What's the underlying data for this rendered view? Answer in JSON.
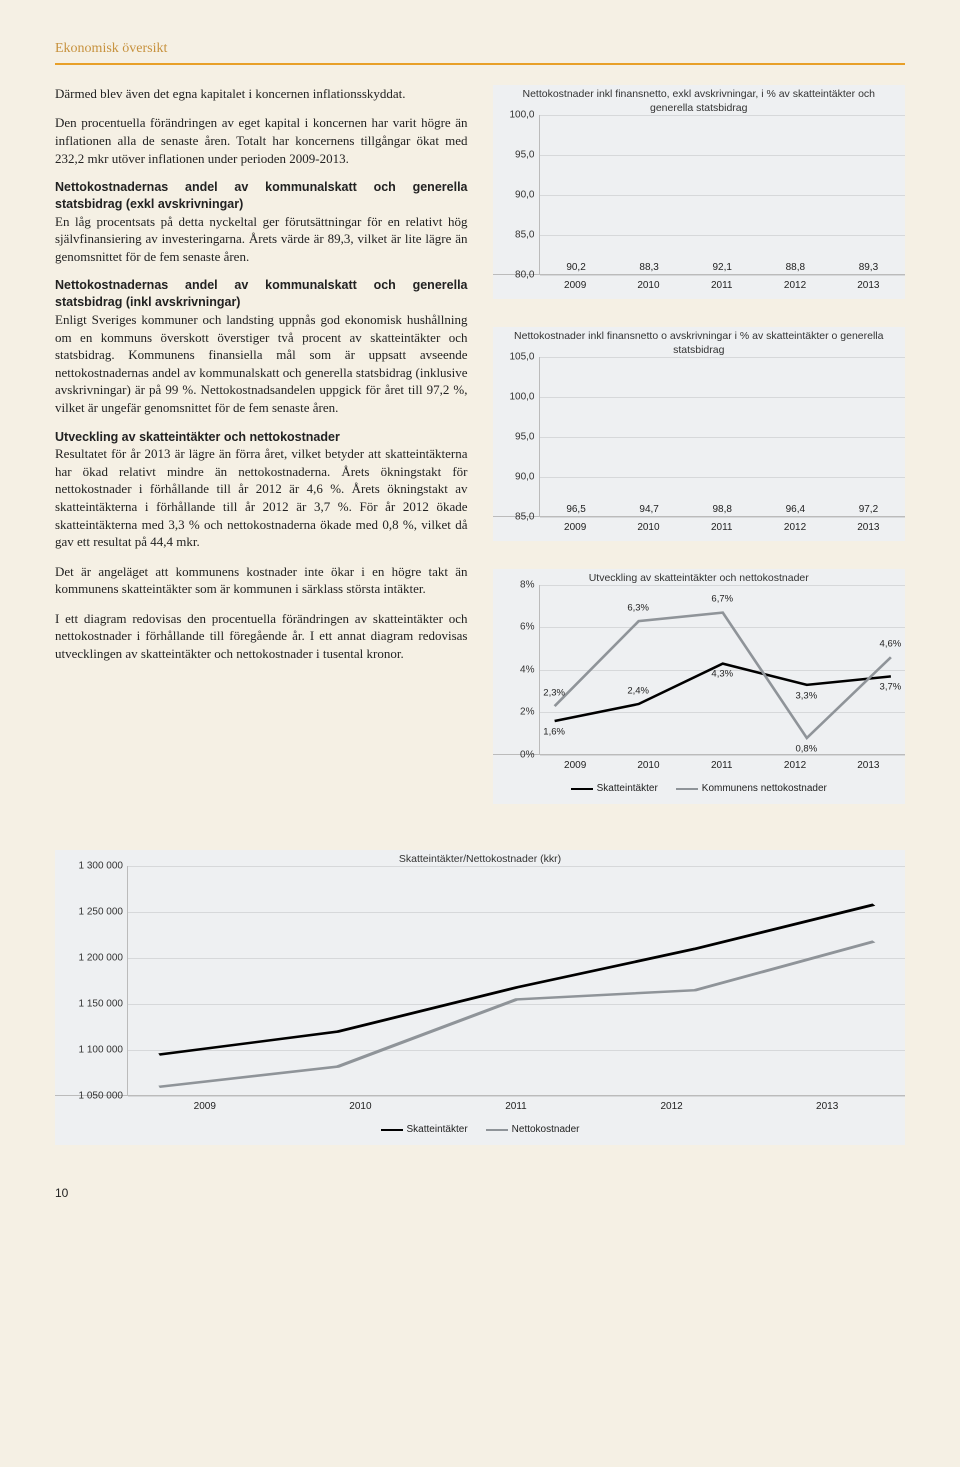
{
  "header": {
    "title": "Ekonomisk översikt"
  },
  "page_number": "10",
  "text": {
    "p1a": "Därmed blev även det egna kapitalet i koncernen inflationsskyddat.",
    "p1b": "Den procentuella förändringen av eget kapital i koncernen har varit högre än inflationen alla de senaste åren. Totalt har koncernens tillgångar ökat med 232,2 mkr utöver inflationen under perioden 2009-2013.",
    "t2": "Nettokostnadernas andel av kommunalskatt och generella statsbidrag (exkl avskrivningar)",
    "p2": "En låg procentsats på detta nyckeltal ger förutsättningar för en relativt hög självfinansiering av investeringarna. Årets värde är 89,3, vilket är lite lägre än genomsnittet för de fem senaste åren.",
    "t3": "Nettokostnadernas andel av kommunalskatt och generella statsbidrag (inkl avskrivningar)",
    "p3": "Enligt Sveriges kommuner och landsting uppnås god ekonomisk hushållning om en kommuns överskott överstiger två procent av skatteintäkter och statsbidrag. Kommunens finansiella mål som är uppsatt avseende nettokostnadernas andel av kommunalskatt och generella statsbidrag (inklusive avskrivningar) är på 99 %. Nettokostnadsandelen uppgick för året till 97,2 %, vilket är ungefär genomsnittet för de fem senaste åren.",
    "t4": "Utveckling av skatteintäkter och nettokostnader",
    "p4a": "Resultatet för år 2013 är lägre än förra året, vilket betyder att skatteintäkterna har ökad relativt mindre än nettokostnaderna. Årets ökningstakt för nettokostnader i förhållande till år 2012 är 4,6 %. Årets ökningstakt av skatteintäkterna i förhållande till år 2012 är 3,7 %. För år 2012 ökade skatteintäkterna med 3,3 % och nettokostnaderna ökade med 0,8 %, vilket då gav ett resultat på 44,4 mkr.",
    "p4b": "Det är angeläget att kommunens kostnader inte ökar i en högre takt än kommunens skatteintäkter som är kommunen i särklass största intäkter.",
    "p4c": "I ett diagram redovisas den procentuella förändringen av skatteintäkter och nettokostnader i förhållande till föregående år. I ett annat diagram redovisas utvecklingen av skatteintäkter och nettokostnader i tusental kronor."
  },
  "chart1": {
    "type": "bar",
    "title": "Nettokostnader inkl finansnetto, exkl avskrivningar, i % av skatteintäkter och generella statsbidrag",
    "categories": [
      "2009",
      "2010",
      "2011",
      "2012",
      "2013"
    ],
    "values": [
      90.2,
      88.3,
      92.1,
      88.8,
      89.3
    ],
    "labels": [
      "90,2",
      "88,3",
      "92,1",
      "88,8",
      "89,3"
    ],
    "bar_color": "#a9b0b6",
    "ylim": [
      80,
      100
    ],
    "yticks": [
      "80,0",
      "85,0",
      "90,0",
      "95,0",
      "100,0"
    ],
    "ytick_vals": [
      80,
      85,
      90,
      95,
      100
    ],
    "background": "#eef0f2",
    "grid_color": "#d6d8da"
  },
  "chart2": {
    "type": "bar",
    "title": "Nettokostnader inkl finansnetto o avskrivningar i % av skatteintäkter o generella statsbidrag",
    "categories": [
      "2009",
      "2010",
      "2011",
      "2012",
      "2013"
    ],
    "values": [
      96.5,
      94.7,
      98.8,
      96.4,
      97.2
    ],
    "labels": [
      "96,5",
      "94,7",
      "98,8",
      "96,4",
      "97,2"
    ],
    "bar_color": "#a9b0b6",
    "ylim": [
      85,
      105
    ],
    "yticks": [
      "85,0",
      "90,0",
      "95,0",
      "100,0",
      "105,0"
    ],
    "ytick_vals": [
      85,
      90,
      95,
      100,
      105
    ],
    "background": "#eef0f2",
    "grid_color": "#d6d8da"
  },
  "chart3": {
    "type": "line",
    "title": "Utveckling av skatteintäkter och nettokostnader",
    "categories": [
      "2009",
      "2010",
      "2011",
      "2012",
      "2013"
    ],
    "ylim": [
      0,
      8
    ],
    "yticks": [
      "0%",
      "2%",
      "4%",
      "6%",
      "8%"
    ],
    "ytick_vals": [
      0,
      2,
      4,
      6,
      8
    ],
    "series": [
      {
        "name": "Skatteintäkter",
        "color": "#000000",
        "width": 2.5,
        "values": [
          1.6,
          2.4,
          4.3,
          3.3,
          3.7
        ],
        "labels": [
          "1,6%",
          "2,4%",
          "4,3%",
          "3,3%",
          "3,7%"
        ],
        "label_dy": [
          12,
          -12,
          12,
          12,
          12
        ]
      },
      {
        "name": "Kommunens nettokostnader",
        "color": "#8f9499",
        "width": 2.5,
        "values": [
          2.3,
          6.3,
          6.7,
          0.8,
          4.6
        ],
        "labels": [
          "2,3%",
          "6,3%",
          "6,7%",
          "0,8%",
          "4,6%"
        ],
        "label_dy": [
          -12,
          -12,
          -12,
          12,
          -12
        ]
      }
    ],
    "legend": [
      "Skatteintäkter",
      "Kommunens nettokostnader"
    ],
    "background": "#eef0f2"
  },
  "chart4": {
    "type": "line",
    "title": "Skatteintäkter/Nettokostnader (kkr)",
    "categories": [
      "2009",
      "2010",
      "2011",
      "2012",
      "2013"
    ],
    "ylim": [
      1050000,
      1300000
    ],
    "yticks": [
      "1 050 000",
      "1 100 000",
      "1 150 000",
      "1 200 000",
      "1 250 000",
      "1 300 000"
    ],
    "ytick_vals": [
      1050000,
      1100000,
      1150000,
      1200000,
      1250000,
      1300000
    ],
    "series": [
      {
        "name": "Skatteintäkter",
        "color": "#000000",
        "width": 2.5,
        "values": [
          1095000,
          1120000,
          1168000,
          1210000,
          1258000
        ]
      },
      {
        "name": "Nettokostnader",
        "color": "#8f9499",
        "width": 2.5,
        "values": [
          1060000,
          1082000,
          1155000,
          1165000,
          1218000
        ]
      }
    ],
    "legend": [
      "Skatteintäkter",
      "Nettokostnader"
    ],
    "background": "#eef0f2"
  }
}
